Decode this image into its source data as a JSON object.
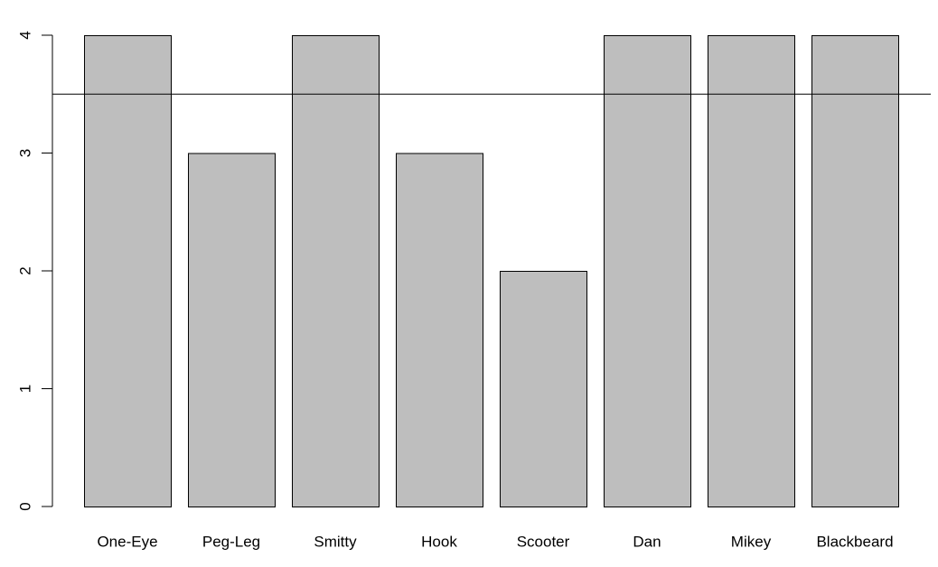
{
  "chart_data": {
    "type": "bar",
    "categories": [
      "One-Eye",
      "Peg-Leg",
      "Smitty",
      "Hook",
      "Scooter",
      "Dan",
      "Mikey",
      "Blackbeard"
    ],
    "values": [
      4,
      3,
      4,
      3,
      2,
      4,
      4,
      4
    ],
    "ylim": [
      0,
      4
    ],
    "yticks": [
      0,
      1,
      2,
      3,
      4
    ],
    "reference_line": 3.5,
    "bar_color": "#bebebe",
    "title": "",
    "xlabel": "",
    "ylabel": "",
    "grid": false,
    "legend": "none"
  }
}
